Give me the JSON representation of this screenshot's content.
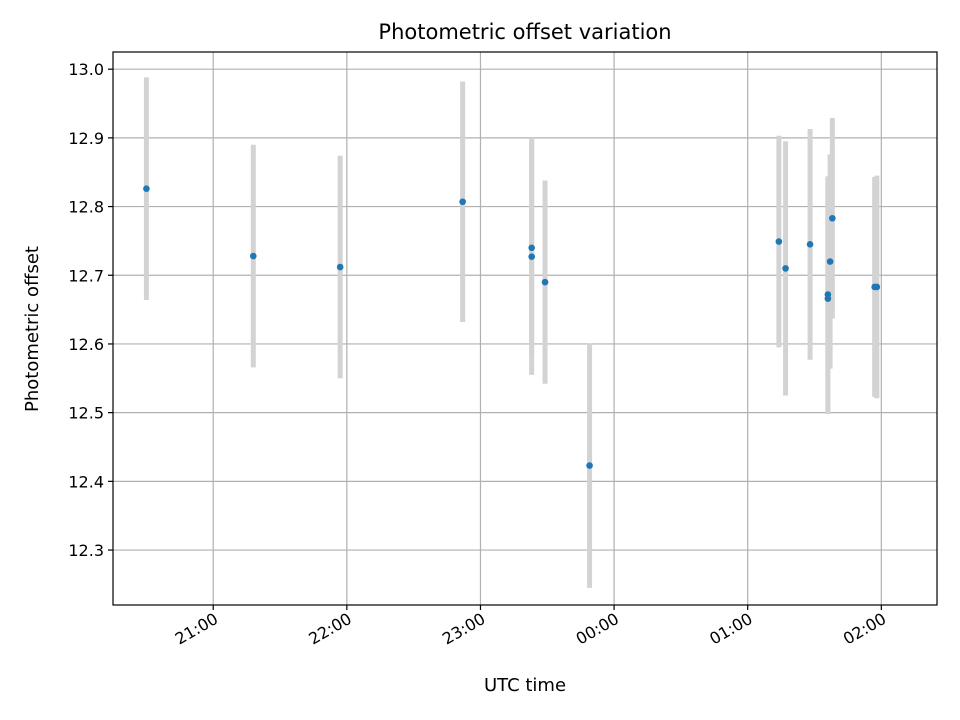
{
  "chart_data": {
    "type": "scatter",
    "title": "Photometric offset variation",
    "xlabel": "UTC time",
    "ylabel": "Photometric offset",
    "x_unit": "UTC time of night",
    "xlim": [
      "20:15",
      "02:25"
    ],
    "ylim": [
      12.22,
      13.025
    ],
    "x_ticks": [
      "21:00",
      "22:00",
      "23:00",
      "00:00",
      "01:00",
      "02:00"
    ],
    "y_ticks": [
      12.3,
      12.4,
      12.5,
      12.6,
      12.7,
      12.8,
      12.9,
      13.0
    ],
    "y_tick_labels": [
      "12.3",
      "12.4",
      "12.5",
      "12.6",
      "12.7",
      "12.8",
      "12.9",
      "13.0"
    ],
    "grid": true,
    "colors": {
      "point": "#1f77b4",
      "errorbar": "#d3d3d3",
      "grid": "#b0b0b0"
    },
    "points": [
      {
        "x": "20:30",
        "y": 12.826,
        "err": 0.162
      },
      {
        "x": "21:18",
        "y": 12.728,
        "err": 0.162
      },
      {
        "x": "21:57",
        "y": 12.712,
        "err": 0.162
      },
      {
        "x": "22:52",
        "y": 12.807,
        "err": 0.175
      },
      {
        "x": "23:23",
        "y": 12.74,
        "err": 0.16
      },
      {
        "x": "23:23",
        "y": 12.727,
        "err": 0.172
      },
      {
        "x": "23:29",
        "y": 12.69,
        "err": 0.148
      },
      {
        "x": "23:49",
        "y": 12.423,
        "err": 0.178
      },
      {
        "x": "01:14",
        "y": 12.749,
        "err": 0.154
      },
      {
        "x": "01:17",
        "y": 12.71,
        "err": 0.185
      },
      {
        "x": "01:28",
        "y": 12.745,
        "err": 0.168
      },
      {
        "x": "01:36",
        "y": 12.672,
        "err": 0.172
      },
      {
        "x": "01:36",
        "y": 12.666,
        "err": 0.168
      },
      {
        "x": "01:37",
        "y": 12.72,
        "err": 0.156
      },
      {
        "x": "01:38",
        "y": 12.783,
        "err": 0.146
      },
      {
        "x": "01:57",
        "y": 12.683,
        "err": 0.16
      },
      {
        "x": "01:58",
        "y": 12.683,
        "err": 0.162
      }
    ]
  }
}
